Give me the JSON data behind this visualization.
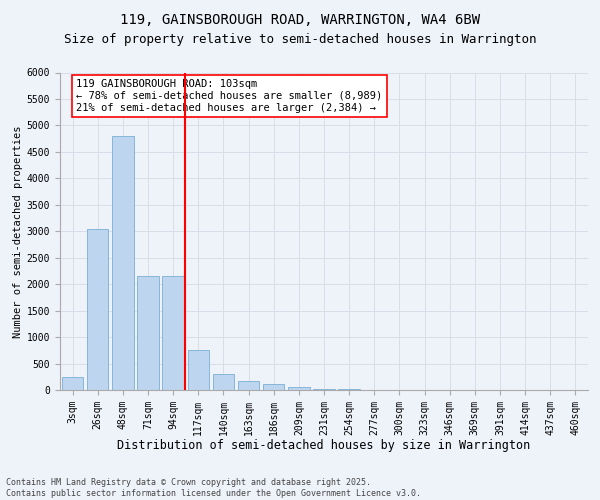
{
  "title1": "119, GAINSBOROUGH ROAD, WARRINGTON, WA4 6BW",
  "title2": "Size of property relative to semi-detached houses in Warrington",
  "xlabel": "Distribution of semi-detached houses by size in Warrington",
  "ylabel": "Number of semi-detached properties",
  "categories": [
    "3sqm",
    "26sqm",
    "48sqm",
    "71sqm",
    "94sqm",
    "117sqm",
    "140sqm",
    "163sqm",
    "186sqm",
    "209sqm",
    "231sqm",
    "254sqm",
    "277sqm",
    "300sqm",
    "323sqm",
    "346sqm",
    "369sqm",
    "391sqm",
    "414sqm",
    "437sqm",
    "460sqm"
  ],
  "values": [
    250,
    3050,
    4800,
    2150,
    2150,
    750,
    300,
    170,
    110,
    50,
    20,
    10,
    0,
    0,
    0,
    0,
    0,
    0,
    0,
    0,
    0
  ],
  "bar_color": "#bdd5ef",
  "bar_edge_color": "#7aafd4",
  "vline_x": 4.47,
  "vline_color": "red",
  "annotation_text": "119 GAINSBOROUGH ROAD: 103sqm\n← 78% of semi-detached houses are smaller (8,989)\n21% of semi-detached houses are larger (2,384) →",
  "annotation_box_color": "white",
  "annotation_box_edge": "red",
  "ylim": [
    0,
    6000
  ],
  "yticks": [
    0,
    500,
    1000,
    1500,
    2000,
    2500,
    3000,
    3500,
    4000,
    4500,
    5000,
    5500,
    6000
  ],
  "bg_color": "#eef2f9",
  "grid_color": "#d8dde8",
  "footer": "Contains HM Land Registry data © Crown copyright and database right 2025.\nContains public sector information licensed under the Open Government Licence v3.0.",
  "title1_fontsize": 10,
  "title2_fontsize": 9,
  "xlabel_fontsize": 8.5,
  "ylabel_fontsize": 7.5,
  "tick_fontsize": 7,
  "annotation_fontsize": 7.5,
  "footer_fontsize": 6
}
